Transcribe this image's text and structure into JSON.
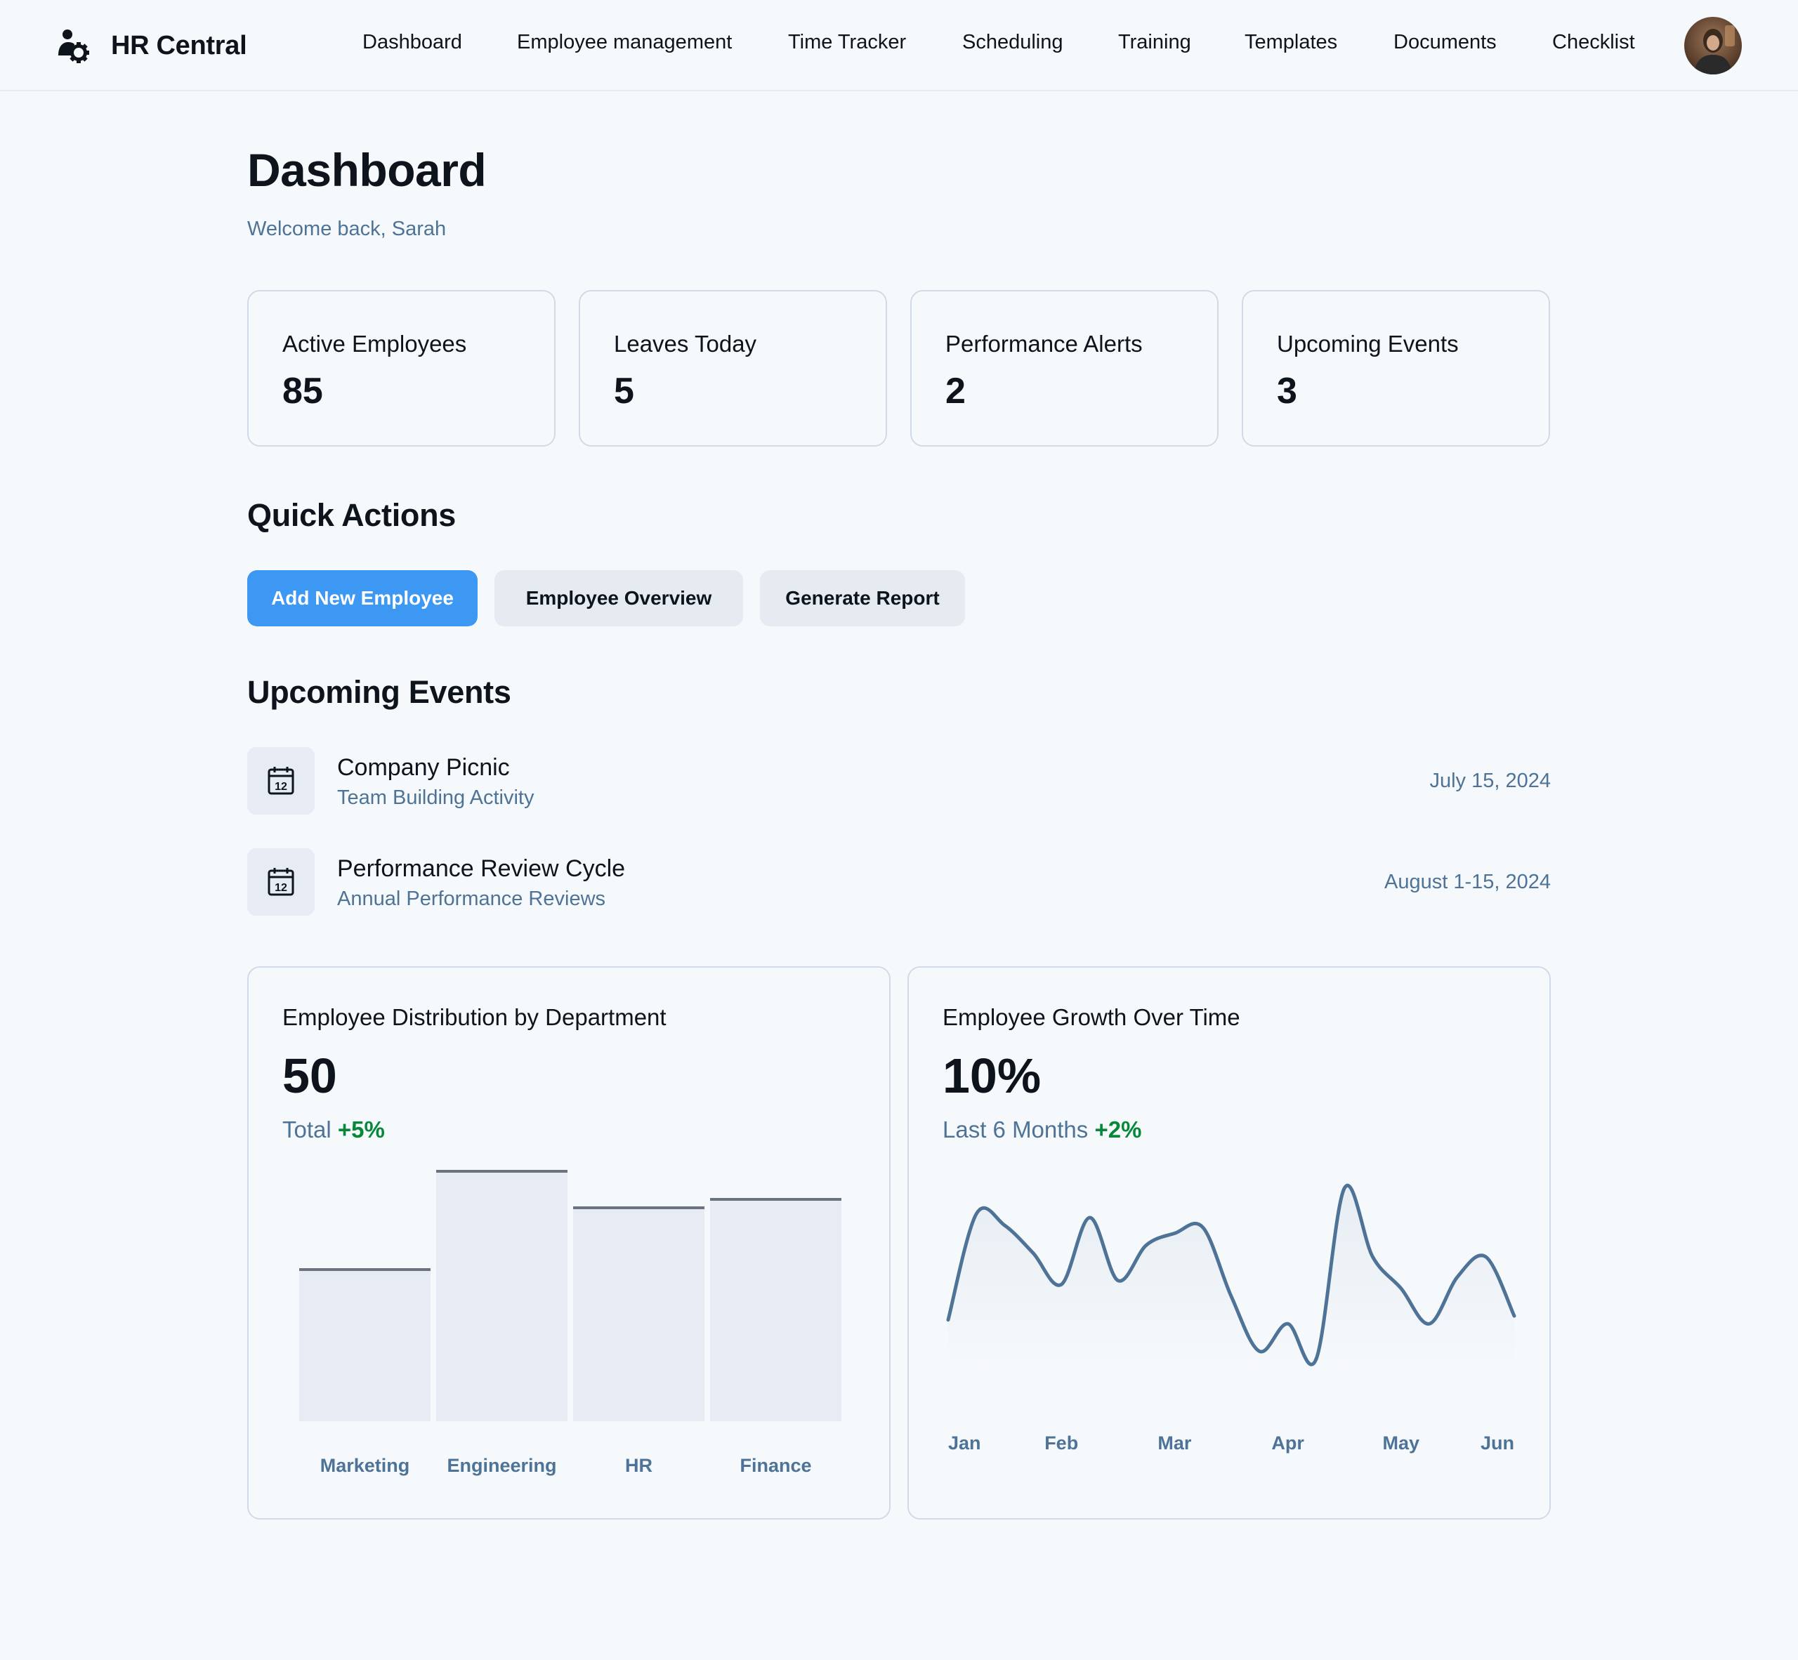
{
  "header": {
    "brand_name": "HR Central",
    "brand_icon": "user-gear-icon",
    "nav": [
      {
        "label": "Dashboard"
      },
      {
        "label": "Employee management"
      },
      {
        "label": "Time Tracker"
      },
      {
        "label": "Scheduling"
      },
      {
        "label": "Training"
      },
      {
        "label": "Templates"
      },
      {
        "label": "Documents"
      },
      {
        "label": "Checklist"
      }
    ],
    "avatar_icon": "user-avatar"
  },
  "page": {
    "title": "Dashboard",
    "welcome": "Welcome back, Sarah"
  },
  "stats": [
    {
      "label": "Active Employees",
      "value": "85"
    },
    {
      "label": "Leaves Today",
      "value": "5"
    },
    {
      "label": "Performance Alerts",
      "value": "2"
    },
    {
      "label": "Upcoming Events",
      "value": "3"
    }
  ],
  "quick_actions": {
    "title": "Quick Actions",
    "buttons": [
      {
        "label": "Add New Employee",
        "style": "primary"
      },
      {
        "label": "Employee Overview",
        "style": "secondary"
      },
      {
        "label": "Generate Report",
        "style": "secondary"
      }
    ]
  },
  "events": {
    "title": "Upcoming Events",
    "icon": "calendar-icon",
    "items": [
      {
        "title": "Company Picnic",
        "subtitle": "Team Building Activity",
        "date": "July 15, 2024"
      },
      {
        "title": "Performance Review Cycle",
        "subtitle": "Annual Performance Reviews",
        "date": "August 1-15, 2024"
      }
    ]
  },
  "colors": {
    "accent": "#3d98f4",
    "muted_text": "#4e7397",
    "positive": "#078838",
    "bar_fill": "#e7ebf3",
    "bar_top": "#6b7280",
    "line": "#4e7397",
    "border": "#d0dbe7"
  },
  "chart_data": [
    {
      "type": "bar",
      "title": "Employee Distribution by Department",
      "value": "50",
      "subtitle": "Total",
      "delta": "+5%",
      "categories": [
        "Marketing",
        "Engineering",
        "HR",
        "Finance"
      ],
      "values": [
        54,
        89,
        76,
        79
      ],
      "ylim": [
        0,
        100
      ],
      "grid": false
    },
    {
      "type": "line",
      "title": "Employee Growth Over Time",
      "value": "10%",
      "subtitle": "Last 6 Months",
      "delta": "+2%",
      "categories": [
        "Jan",
        "Feb",
        "Mar",
        "Apr",
        "May",
        "Jun"
      ],
      "x": [
        0,
        0.25,
        0.5,
        0.75,
        1.0,
        1.25,
        1.5,
        1.75,
        2.0,
        2.25,
        2.5,
        2.75,
        3.0,
        3.25,
        3.5,
        3.75,
        4.0,
        4.25,
        4.5,
        4.75,
        5.0
      ],
      "values": [
        28,
        82,
        76,
        62,
        46,
        80,
        48,
        66,
        72,
        75,
        40,
        12,
        26,
        8,
        95,
        60,
        44,
        26,
        50,
        60,
        30
      ],
      "ylim": [
        0,
        100
      ],
      "grid": false
    }
  ]
}
